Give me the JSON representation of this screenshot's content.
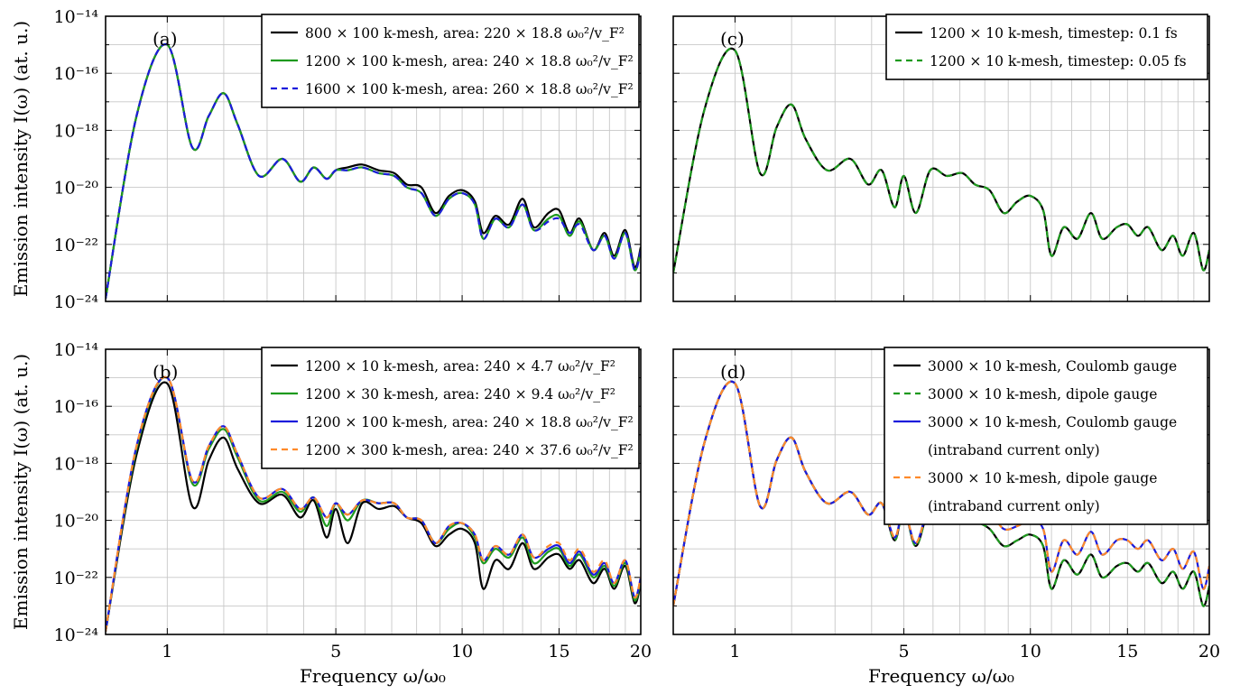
{
  "figure": {
    "ylabel": "Emission intensity I(ω) (at. u.)",
    "xlabel": "Frequency ω/ω₀"
  },
  "colors": {
    "black": "#000000",
    "green": "#1e9a1e",
    "blue": "#1c1cdc",
    "orange": "#ff8a2a"
  },
  "chart_data": [
    {
      "id": "a",
      "panel_label": "(a)",
      "type": "line",
      "xscale": "sqrt",
      "yscale": "log",
      "xlim": [
        0.3,
        20
      ],
      "ylim": [
        1e-24,
        1e-14
      ],
      "xticks": [
        1,
        5,
        10,
        15,
        20
      ],
      "yticks": [
        -24,
        -22,
        -20,
        -18,
        -16,
        -14
      ],
      "ytick_labels": [
        "10⁻²⁴",
        "10⁻²²",
        "10⁻²⁰",
        "10⁻¹⁸",
        "10⁻¹⁶",
        "10⁻¹⁴"
      ],
      "grid": true,
      "legend_position": "top-right",
      "show_ytick_labels": true,
      "show_xtick_labels": false,
      "x": [
        0.3,
        0.6,
        1.0,
        1.4,
        1.7,
        2.0,
        2.3,
        2.8,
        3.4,
        3.9,
        4.3,
        4.7,
        5.0,
        5.4,
        5.9,
        6.5,
        7.1,
        7.6,
        8.2,
        8.8,
        9.4,
        10.0,
        10.6,
        11.0,
        11.6,
        12.3,
        13.0,
        13.6,
        14.4,
        15.0,
        15.6,
        16.2,
        17.0,
        17.7,
        18.3,
        19.0,
        19.6,
        20.0
      ],
      "series": [
        {
          "name": "800 × 100 k-mesh, area: 220 × 18.8 ω₀²/v_F²",
          "color": "black",
          "dash": "solid",
          "log10": [
            -23.9,
            -17.5,
            -15.0,
            -18.6,
            -17.5,
            -16.7,
            -17.8,
            -19.6,
            -19.0,
            -19.8,
            -19.3,
            -19.7,
            -19.4,
            -19.3,
            -19.2,
            -19.4,
            -19.5,
            -19.9,
            -20.0,
            -20.9,
            -20.3,
            -20.1,
            -20.5,
            -21.6,
            -21.0,
            -21.3,
            -20.4,
            -21.4,
            -20.9,
            -20.8,
            -21.6,
            -21.1,
            -22.2,
            -21.6,
            -22.4,
            -21.5,
            -22.8,
            -22.1
          ]
        },
        {
          "name": "1200 × 100 k-mesh, area: 240 × 18.8 ω₀²/v_F²",
          "color": "green",
          "dash": "solid",
          "log10": [
            -23.9,
            -17.5,
            -15.0,
            -18.6,
            -17.5,
            -16.7,
            -17.8,
            -19.6,
            -19.0,
            -19.8,
            -19.3,
            -19.7,
            -19.4,
            -19.4,
            -19.3,
            -19.5,
            -19.6,
            -20.0,
            -20.2,
            -21.0,
            -20.4,
            -20.2,
            -20.6,
            -21.8,
            -21.1,
            -21.4,
            -20.6,
            -21.5,
            -21.1,
            -21.0,
            -21.7,
            -21.2,
            -22.2,
            -21.7,
            -22.5,
            -21.6,
            -22.9,
            -22.2
          ]
        },
        {
          "name": "1600 × 100 k-mesh, area: 260 × 18.8 ω₀²/v_F²",
          "color": "blue",
          "dash": "dashed",
          "log10": [
            -23.9,
            -17.5,
            -15.0,
            -18.6,
            -17.5,
            -16.7,
            -17.8,
            -19.6,
            -19.0,
            -19.8,
            -19.3,
            -19.7,
            -19.4,
            -19.4,
            -19.3,
            -19.5,
            -19.6,
            -20.0,
            -20.2,
            -21.0,
            -20.4,
            -20.2,
            -20.6,
            -21.8,
            -21.1,
            -21.4,
            -20.6,
            -21.5,
            -21.2,
            -21.1,
            -21.6,
            -21.3,
            -22.2,
            -21.7,
            -22.5,
            -21.6,
            -22.9,
            -22.2
          ]
        }
      ]
    },
    {
      "id": "b",
      "panel_label": "(b)",
      "type": "line",
      "xscale": "sqrt",
      "yscale": "log",
      "xlim": [
        0.3,
        20
      ],
      "ylim": [
        1e-24,
        1e-14
      ],
      "xticks": [
        1,
        5,
        10,
        15,
        20
      ],
      "yticks": [
        -24,
        -22,
        -20,
        -18,
        -16,
        -14
      ],
      "ytick_labels": [
        "10⁻²⁴",
        "10⁻²²",
        "10⁻²⁰",
        "10⁻¹⁸",
        "10⁻¹⁶",
        "10⁻¹⁴"
      ],
      "xtick_labels": [
        "1",
        "5",
        "10",
        "15",
        "20"
      ],
      "grid": true,
      "legend_position": "top-right",
      "show_ytick_labels": true,
      "show_xtick_labels": true,
      "x": [
        0.3,
        0.6,
        1.0,
        1.4,
        1.7,
        2.0,
        2.3,
        2.8,
        3.4,
        3.9,
        4.3,
        4.7,
        5.0,
        5.4,
        5.9,
        6.5,
        7.1,
        7.6,
        8.2,
        8.8,
        9.4,
        10.0,
        10.6,
        11.0,
        11.6,
        12.3,
        13.0,
        13.6,
        14.4,
        15.0,
        15.6,
        16.2,
        17.0,
        17.7,
        18.3,
        19.0,
        19.6,
        20.0
      ],
      "series": [
        {
          "name": "1200 × 10 k-mesh, area: 240 × 4.7 ω₀²/v_F²",
          "color": "black",
          "dash": "solid",
          "log10": [
            -23.9,
            -17.7,
            -15.2,
            -19.5,
            -17.9,
            -17.1,
            -18.2,
            -19.4,
            -19.1,
            -19.9,
            -19.3,
            -20.6,
            -19.6,
            -20.8,
            -19.4,
            -19.6,
            -19.5,
            -19.9,
            -20.1,
            -20.9,
            -20.5,
            -20.3,
            -20.8,
            -22.4,
            -21.4,
            -21.7,
            -20.8,
            -21.7,
            -21.3,
            -21.2,
            -21.7,
            -21.4,
            -22.2,
            -21.7,
            -22.4,
            -21.6,
            -22.9,
            -22.2
          ]
        },
        {
          "name": "1200 × 30 k-mesh, area: 240 × 9.4 ω₀²/v_F²",
          "color": "green",
          "dash": "solid",
          "log10": [
            -23.9,
            -17.5,
            -15.0,
            -18.7,
            -17.5,
            -16.8,
            -17.8,
            -19.3,
            -19.0,
            -19.7,
            -19.2,
            -20.2,
            -19.4,
            -20.0,
            -19.3,
            -19.4,
            -19.4,
            -19.9,
            -20.0,
            -20.8,
            -20.3,
            -20.1,
            -20.6,
            -21.5,
            -21.0,
            -21.3,
            -20.6,
            -21.5,
            -21.1,
            -21.0,
            -21.6,
            -21.2,
            -22.0,
            -21.6,
            -22.3,
            -21.5,
            -22.8,
            -22.1
          ]
        },
        {
          "name": "1200 × 100 k-mesh, area: 240 × 18.8 ω₀²/v_F²",
          "color": "blue",
          "dash": "solid",
          "log10": [
            -23.9,
            -17.4,
            -15.0,
            -18.6,
            -17.4,
            -16.7,
            -17.7,
            -19.2,
            -18.9,
            -19.6,
            -19.2,
            -19.9,
            -19.4,
            -19.8,
            -19.3,
            -19.4,
            -19.4,
            -19.9,
            -20.0,
            -20.8,
            -20.2,
            -20.1,
            -20.5,
            -21.4,
            -20.9,
            -21.2,
            -20.5,
            -21.3,
            -21.0,
            -20.9,
            -21.5,
            -21.1,
            -21.9,
            -21.5,
            -22.2,
            -21.4,
            -22.7,
            -22.0
          ]
        },
        {
          "name": "1200 × 300 k-mesh, area: 240 × 37.6 ω₀²/v_F²",
          "color": "orange",
          "dash": "dashed",
          "log10": [
            -23.9,
            -17.4,
            -15.0,
            -18.6,
            -17.4,
            -16.7,
            -17.7,
            -19.2,
            -18.9,
            -19.6,
            -19.2,
            -19.9,
            -19.4,
            -19.8,
            -19.3,
            -19.4,
            -19.4,
            -19.9,
            -20.0,
            -20.8,
            -20.2,
            -20.1,
            -20.5,
            -21.4,
            -20.9,
            -21.2,
            -20.5,
            -21.3,
            -20.9,
            -20.8,
            -21.4,
            -21.0,
            -21.8,
            -21.4,
            -22.2,
            -21.4,
            -22.7,
            -22.0
          ]
        }
      ]
    },
    {
      "id": "c",
      "panel_label": "(c)",
      "type": "line",
      "xscale": "sqrt",
      "yscale": "log",
      "xlim": [
        0.3,
        20
      ],
      "ylim": [
        1e-24,
        1e-14
      ],
      "xticks": [
        1,
        5,
        10,
        15,
        20
      ],
      "yticks": [
        -24,
        -22,
        -20,
        -18,
        -16,
        -14
      ],
      "grid": true,
      "legend_position": "top-right",
      "show_ytick_labels": false,
      "show_xtick_labels": false,
      "x": [
        0.3,
        0.6,
        1.0,
        1.4,
        1.7,
        2.0,
        2.3,
        2.8,
        3.4,
        3.9,
        4.3,
        4.7,
        5.0,
        5.4,
        5.9,
        6.5,
        7.1,
        7.6,
        8.2,
        8.8,
        9.4,
        10.0,
        10.6,
        11.0,
        11.6,
        12.3,
        13.0,
        13.6,
        14.4,
        15.0,
        15.6,
        16.2,
        17.0,
        17.7,
        18.3,
        19.0,
        19.6,
        20.0
      ],
      "series": [
        {
          "name": "1200 × 10 k-mesh, timestep: 0.1 fs",
          "color": "black",
          "dash": "solid",
          "log10": [
            -23.0,
            -17.3,
            -15.2,
            -19.5,
            -17.9,
            -17.1,
            -18.3,
            -19.4,
            -19.0,
            -19.9,
            -19.4,
            -20.7,
            -19.6,
            -20.9,
            -19.4,
            -19.6,
            -19.5,
            -19.9,
            -20.1,
            -20.9,
            -20.5,
            -20.3,
            -20.8,
            -22.4,
            -21.4,
            -21.8,
            -20.9,
            -21.8,
            -21.4,
            -21.3,
            -21.7,
            -21.4,
            -22.2,
            -21.7,
            -22.4,
            -21.6,
            -22.9,
            -22.2
          ]
        },
        {
          "name": "1200 × 10 k-mesh, timestep: 0.05 fs",
          "color": "green",
          "dash": "dashed",
          "log10": [
            -23.0,
            -17.3,
            -15.2,
            -19.5,
            -17.9,
            -17.1,
            -18.3,
            -19.4,
            -19.0,
            -19.9,
            -19.4,
            -20.7,
            -19.6,
            -20.9,
            -19.4,
            -19.6,
            -19.5,
            -19.9,
            -20.1,
            -20.9,
            -20.5,
            -20.3,
            -20.8,
            -22.4,
            -21.4,
            -21.8,
            -20.9,
            -21.8,
            -21.4,
            -21.3,
            -21.7,
            -21.4,
            -22.2,
            -21.7,
            -22.4,
            -21.6,
            -22.9,
            -22.2
          ]
        }
      ]
    },
    {
      "id": "d",
      "panel_label": "(d)",
      "type": "line",
      "xscale": "sqrt",
      "yscale": "log",
      "xlim": [
        0.3,
        20
      ],
      "ylim": [
        1e-24,
        1e-14
      ],
      "xticks": [
        1,
        5,
        10,
        15,
        20
      ],
      "yticks": [
        -24,
        -22,
        -20,
        -18,
        -16,
        -14
      ],
      "xtick_labels": [
        "1",
        "5",
        "10",
        "15",
        "20"
      ],
      "grid": true,
      "legend_position": "top-right",
      "show_ytick_labels": false,
      "show_xtick_labels": true,
      "x": [
        0.3,
        0.6,
        1.0,
        1.4,
        1.7,
        2.0,
        2.3,
        2.8,
        3.4,
        3.9,
        4.3,
        4.7,
        5.0,
        5.4,
        5.9,
        6.5,
        7.1,
        7.6,
        8.2,
        8.8,
        9.4,
        10.0,
        10.6,
        11.0,
        11.6,
        12.3,
        13.0,
        13.6,
        14.4,
        15.0,
        15.6,
        16.2,
        17.0,
        17.7,
        18.3,
        19.0,
        19.6,
        20.0
      ],
      "series": [
        {
          "name": "3000 × 10 k-mesh, Coulomb gauge",
          "color": "black",
          "dash": "solid",
          "log10": [
            -23.0,
            -17.3,
            -15.2,
            -19.5,
            -17.9,
            -17.1,
            -18.3,
            -19.4,
            -19.0,
            -19.8,
            -19.4,
            -20.7,
            -19.6,
            -20.9,
            -19.5,
            -19.6,
            -19.6,
            -20.0,
            -20.3,
            -20.9,
            -20.7,
            -20.5,
            -20.9,
            -22.4,
            -21.4,
            -21.9,
            -21.2,
            -22.0,
            -21.6,
            -21.5,
            -21.8,
            -21.5,
            -22.2,
            -21.8,
            -22.4,
            -21.8,
            -23.0,
            -22.3
          ]
        },
        {
          "name": "3000 × 10 k-mesh, dipole gauge",
          "color": "green",
          "dash": "dashed",
          "log10": [
            -23.0,
            -17.3,
            -15.2,
            -19.5,
            -17.9,
            -17.1,
            -18.3,
            -19.4,
            -19.0,
            -19.8,
            -19.4,
            -20.7,
            -19.6,
            -20.9,
            -19.5,
            -19.6,
            -19.6,
            -20.0,
            -20.3,
            -20.9,
            -20.7,
            -20.5,
            -20.9,
            -22.4,
            -21.4,
            -21.9,
            -21.2,
            -22.0,
            -21.6,
            -21.5,
            -21.8,
            -21.5,
            -22.2,
            -21.8,
            -22.4,
            -21.8,
            -23.0,
            -22.3
          ]
        },
        {
          "name": "3000 × 10 k-mesh, Coulomb gauge",
          "name2": "(intraband current only)",
          "color": "blue",
          "dash": "solid",
          "log10": [
            -23.0,
            -17.3,
            -15.2,
            -19.5,
            -17.9,
            -17.1,
            -18.3,
            -19.4,
            -19.0,
            -19.8,
            -19.4,
            -20.6,
            -19.6,
            -20.8,
            -19.4,
            -19.5,
            -19.4,
            -19.6,
            -19.7,
            -20.3,
            -20.2,
            -20.0,
            -20.3,
            -21.8,
            -20.7,
            -21.2,
            -20.4,
            -21.2,
            -20.7,
            -20.7,
            -21.0,
            -20.7,
            -21.4,
            -21.0,
            -21.7,
            -21.1,
            -22.4,
            -21.6
          ]
        },
        {
          "name": "3000 × 10 k-mesh, dipole gauge",
          "name2": "(intraband current only)",
          "color": "orange",
          "dash": "dashed",
          "log10": [
            -23.0,
            -17.3,
            -15.2,
            -19.5,
            -17.9,
            -17.1,
            -18.3,
            -19.4,
            -19.0,
            -19.8,
            -19.4,
            -20.6,
            -19.6,
            -20.8,
            -19.4,
            -19.5,
            -19.4,
            -19.6,
            -19.7,
            -20.3,
            -20.2,
            -20.0,
            -20.3,
            -21.8,
            -20.7,
            -21.2,
            -20.4,
            -21.2,
            -20.7,
            -20.7,
            -21.0,
            -20.7,
            -21.4,
            -21.0,
            -21.7,
            -21.1,
            -22.4,
            -21.6
          ]
        }
      ]
    }
  ]
}
